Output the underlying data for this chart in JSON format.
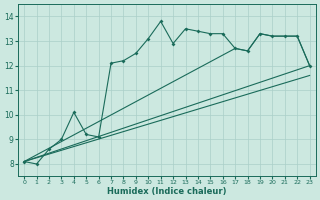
{
  "background_color": "#cce8e0",
  "grid_color": "#aacfc8",
  "line_color": "#1a6b5a",
  "xlabel": "Humidex (Indice chaleur)",
  "xlim": [
    -0.5,
    23.5
  ],
  "ylim": [
    7.5,
    14.5
  ],
  "yticks": [
    8,
    9,
    10,
    11,
    12,
    13,
    14
  ],
  "xticks": [
    0,
    1,
    2,
    3,
    4,
    5,
    6,
    7,
    8,
    9,
    10,
    11,
    12,
    13,
    14,
    15,
    16,
    17,
    18,
    19,
    20,
    21,
    22,
    23
  ],
  "series": [
    {
      "x": [
        0,
        1,
        2,
        3,
        4,
        5,
        6,
        7,
        8,
        9,
        10,
        11,
        12,
        13,
        14,
        15,
        16,
        17,
        18,
        19,
        20,
        21,
        22,
        23
      ],
      "y": [
        8.1,
        8.0,
        8.6,
        9.0,
        10.1,
        9.2,
        9.1,
        12.1,
        12.2,
        12.5,
        13.1,
        13.8,
        12.9,
        13.5,
        13.4,
        13.3,
        13.3,
        12.7,
        12.6,
        13.3,
        13.2,
        13.2,
        13.2,
        12.0
      ],
      "marker": "D",
      "markersize": 2.0
    },
    {
      "x": [
        0,
        17,
        18,
        19,
        20,
        21,
        22,
        23
      ],
      "y": [
        8.1,
        12.7,
        12.6,
        13.3,
        13.2,
        13.2,
        13.2,
        12.0
      ],
      "marker": null
    },
    {
      "x": [
        0,
        23
      ],
      "y": [
        8.1,
        12.0
      ],
      "marker": null
    },
    {
      "x": [
        0,
        23
      ],
      "y": [
        8.1,
        11.8
      ],
      "marker": null
    }
  ]
}
